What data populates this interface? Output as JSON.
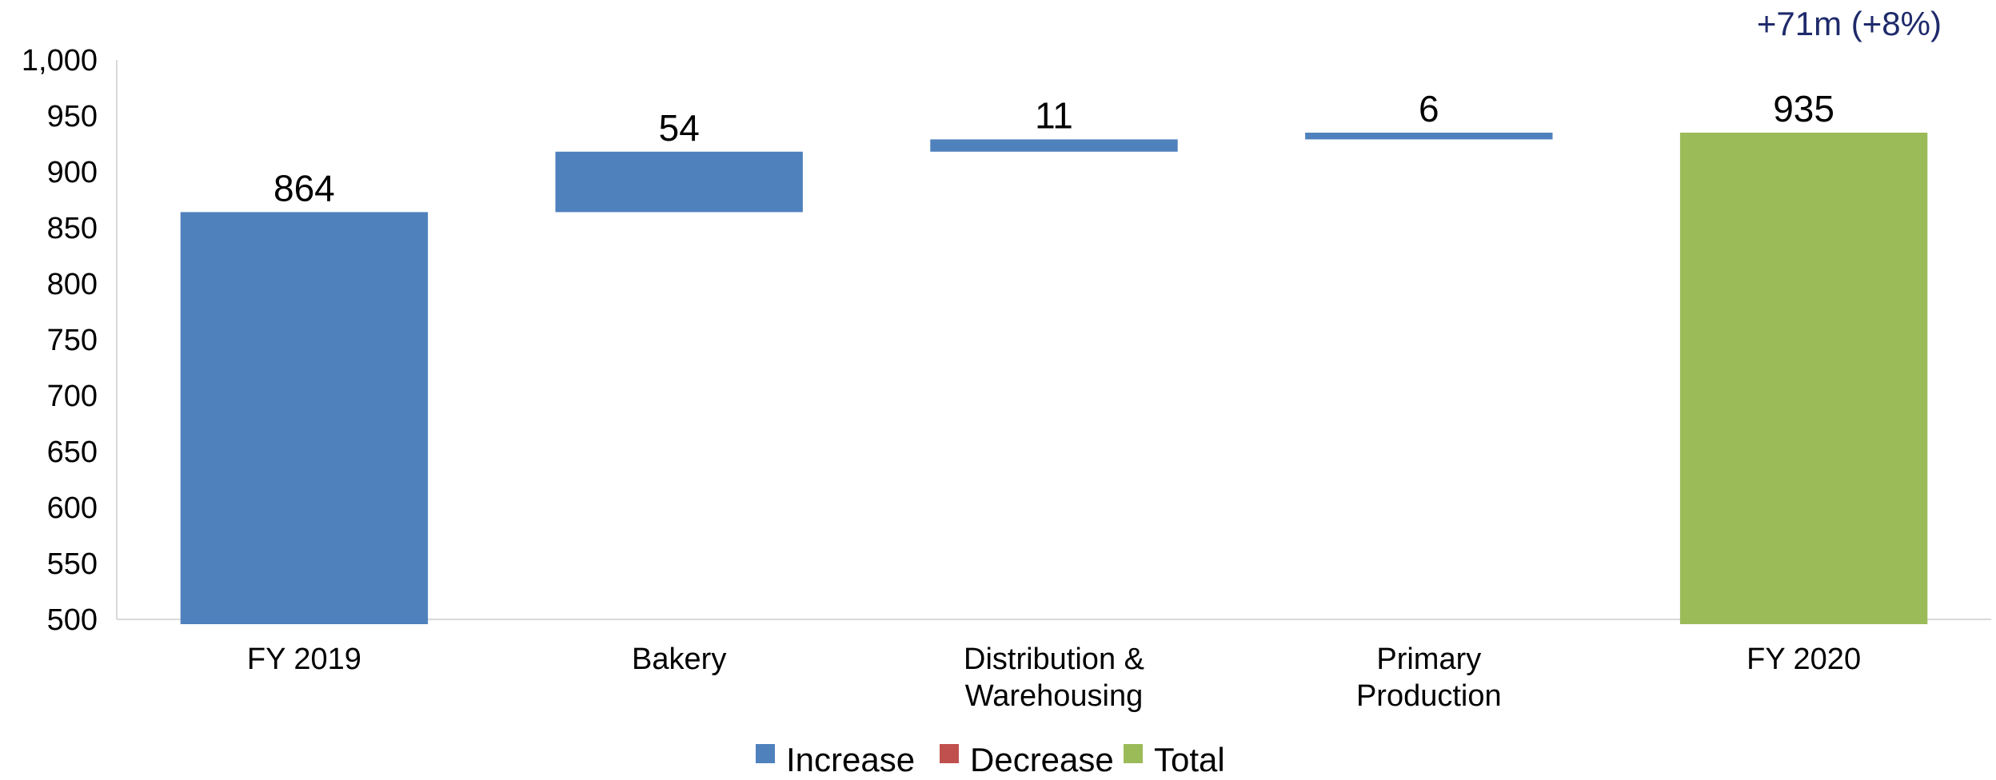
{
  "chart_data": {
    "type": "bar",
    "variant": "waterfall",
    "categories": [
      "FY 2019",
      "Bakery",
      "Distribution & Warehousing",
      "Primary Production",
      "FY 2020"
    ],
    "category_lines": [
      [
        "FY 2019"
      ],
      [
        "Bakery"
      ],
      [
        "Distribution &",
        "Warehousing"
      ],
      [
        "Primary",
        "Production"
      ],
      [
        "FY 2020"
      ]
    ],
    "steps": [
      {
        "category": "FY 2019",
        "kind": "total",
        "start": 500,
        "end": 864,
        "label": "864"
      },
      {
        "category": "Bakery",
        "kind": "increase",
        "start": 864,
        "end": 918,
        "label": "54"
      },
      {
        "category": "Distribution & Warehousing",
        "kind": "increase",
        "start": 918,
        "end": 929,
        "label": "11"
      },
      {
        "category": "Primary Production",
        "kind": "increase",
        "start": 929,
        "end": 935,
        "label": "6"
      },
      {
        "category": "FY 2020",
        "kind": "grand_total",
        "start": 500,
        "end": 935,
        "label": "935"
      }
    ],
    "ylim": [
      500,
      1000
    ],
    "yticks": [
      "500",
      "550",
      "600",
      "650",
      "700",
      "750",
      "800",
      "850",
      "900",
      "950",
      "1,000"
    ],
    "ytick_values": [
      500,
      550,
      600,
      650,
      700,
      750,
      800,
      850,
      900,
      950,
      1000
    ],
    "grid": false,
    "legend_position": "bottom-center",
    "legend": [
      {
        "name": "Increase",
        "color": "#4f81bd"
      },
      {
        "name": "Decrease",
        "color": "#c0504d"
      },
      {
        "name": "Total",
        "color": "#9bbb59"
      }
    ],
    "annotation": "+71m (+8%)",
    "colors": {
      "increase": "#4f81bd",
      "total_first": "#4f81bd",
      "total_last": "#9bbb59",
      "annotation": "#1f2a6b",
      "axis": "#d9d9d9"
    }
  }
}
